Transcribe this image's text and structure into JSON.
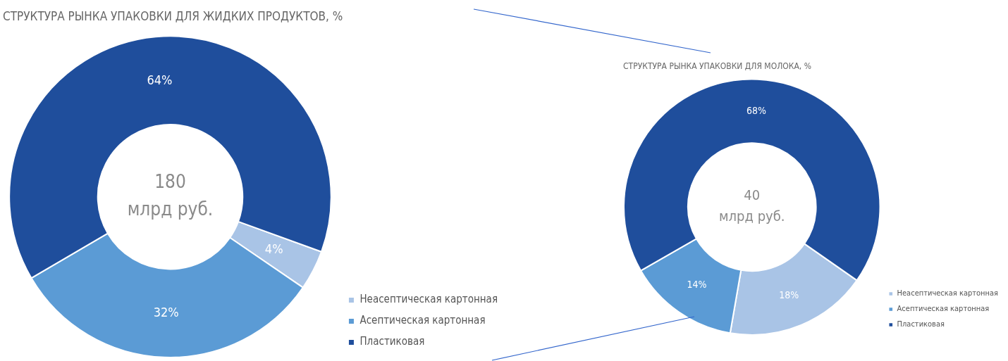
{
  "chart_data": [
    {
      "type": "donut",
      "title": "СТРУКТУРА РЫНКА УПАКОВКИ ДЛЯ ЖИДКИХ ПРОДУКТОВ, %",
      "categories": [
        "Неасептическая картонная",
        "Асептическая картонная",
        "Пластиковая"
      ],
      "values": [
        4,
        32,
        64
      ],
      "value_labels": [
        "4%",
        "32%",
        "64%"
      ],
      "colors": [
        "#a9c4e6",
        "#5b9bd5",
        "#1f4e9c"
      ],
      "legend": "right",
      "annotations": [
        "180",
        "млрд руб."
      ]
    },
    {
      "type": "donut",
      "title": "СТРУКТУРА РЫНКА УПАКОВКИ ДЛЯ МОЛОКА, %",
      "categories": [
        "Неасептическая картонная",
        "Асептическая картонная",
        "Пластиковая"
      ],
      "values": [
        18,
        14,
        68
      ],
      "value_labels": [
        "18%",
        "14%",
        "68%"
      ],
      "colors": [
        "#a9c4e6",
        "#5b9bd5",
        "#1f4e9c"
      ],
      "legend": "right",
      "annotations": [
        "40",
        "млрд руб."
      ]
    }
  ]
}
